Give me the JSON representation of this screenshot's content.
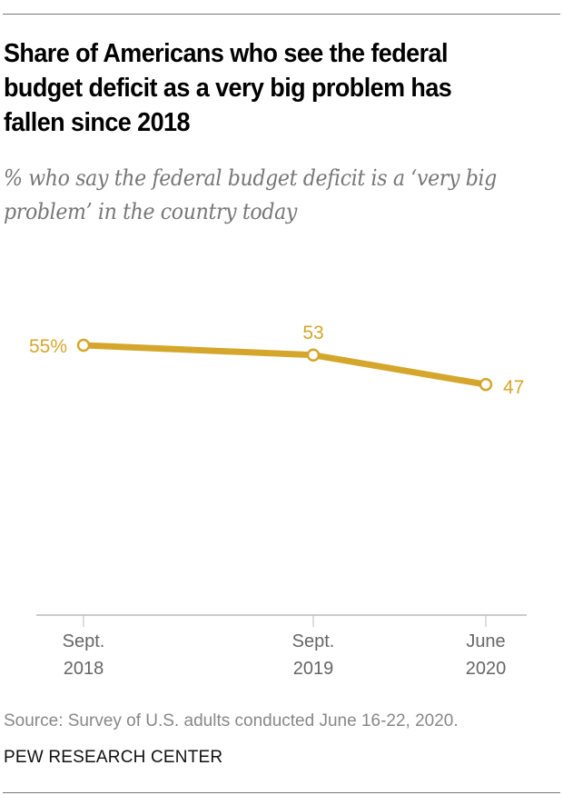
{
  "chart_data": {
    "type": "line",
    "title": "Share of Americans who see the federal budget deficit as a very big problem has fallen since 2018",
    "subtitle": "% who say the federal budget deficit is a ‘very big problem’ in the country today",
    "xlabel": "",
    "ylabel": "",
    "categories": [
      "Sept. 2018",
      "Sept. 2019",
      "June 2020"
    ],
    "x_tick_labels": [
      [
        "Sept.",
        "2018"
      ],
      [
        "Sept.",
        "2019"
      ],
      [
        "June",
        "2020"
      ]
    ],
    "series": [
      {
        "name": "Very big problem",
        "values": [
          55,
          53,
          47
        ],
        "color": "#D4A72C"
      }
    ],
    "data_labels": [
      "55%",
      "53",
      "47"
    ],
    "ylim": [
      0,
      60
    ],
    "grid": false,
    "legend": "none"
  },
  "footer": {
    "source": "Source: Survey of U.S. adults conducted June 16-22, 2020.",
    "brand": "PEW RESEARCH CENTER"
  },
  "colors": {
    "line": "#D4A72C",
    "axis": "#999999",
    "tick_label": "#666666"
  }
}
